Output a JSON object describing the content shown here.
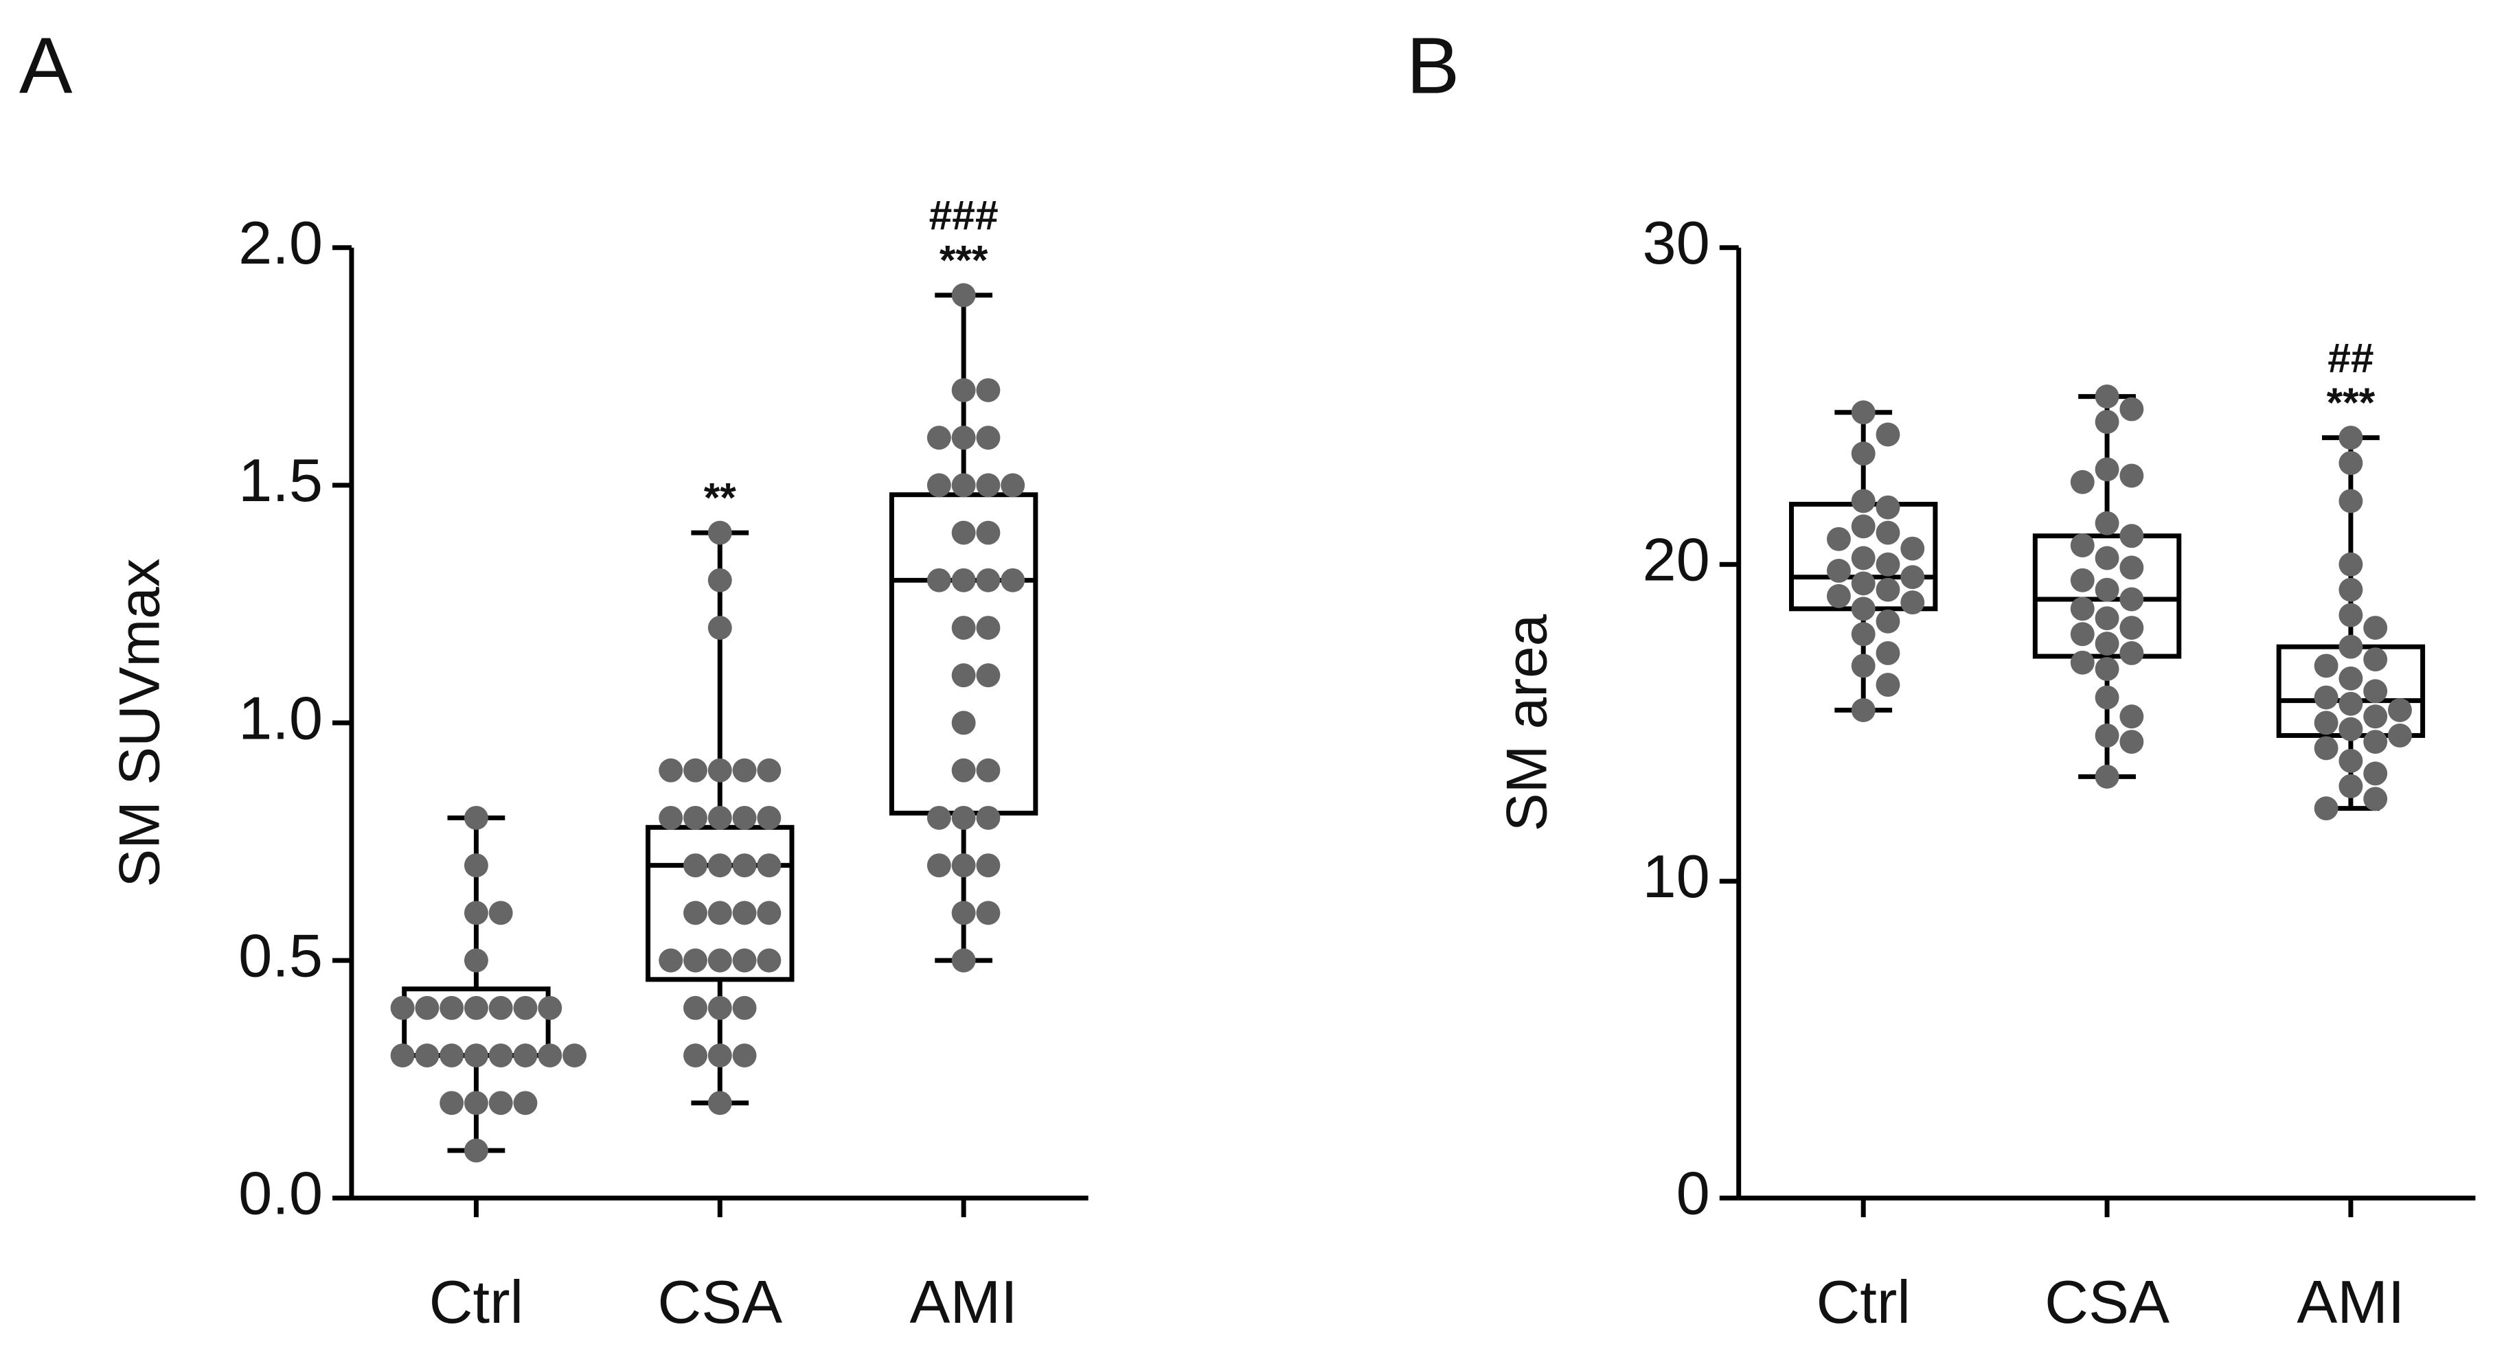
{
  "chart_data": [
    {
      "type": "box",
      "panel": "A",
      "ylabel": "SM SUVmax",
      "categories": [
        "Ctrl",
        "CSA",
        "AMI"
      ],
      "ylim": [
        0,
        2
      ],
      "yticks": [
        {
          "value": 0,
          "label": "0.0"
        },
        0.5,
        {
          "value": 1,
          "label": "1.0"
        },
        1.5,
        {
          "value": 2,
          "label": "2.0"
        }
      ],
      "boxes": [
        {
          "min": 0.1,
          "q1": 0.3,
          "median": 0.3,
          "q3": 0.44,
          "max": 0.8
        },
        {
          "min": 0.2,
          "q1": 0.46,
          "median": 0.7,
          "q3": 0.78,
          "max": 1.4
        },
        {
          "min": 0.5,
          "q1": 0.81,
          "median": 1.3,
          "q3": 1.48,
          "max": 1.9
        }
      ],
      "points": [
        [
          0.8,
          0.7,
          0.6,
          0.6,
          0.5,
          0.4,
          0.4,
          0.4,
          0.4,
          0.4,
          0.4,
          0.4,
          0.3,
          0.3,
          0.3,
          0.3,
          0.3,
          0.3,
          0.3,
          0.3,
          0.2,
          0.2,
          0.2,
          0.2,
          0.1
        ],
        [
          1.4,
          1.3,
          1.2,
          0.9,
          0.9,
          0.9,
          0.9,
          0.9,
          0.8,
          0.8,
          0.8,
          0.8,
          0.8,
          0.7,
          0.7,
          0.7,
          0.7,
          0.6,
          0.6,
          0.6,
          0.6,
          0.5,
          0.5,
          0.5,
          0.5,
          0.5,
          0.4,
          0.4,
          0.4,
          0.3,
          0.3,
          0.3,
          0.2
        ],
        [
          1.9,
          1.7,
          1.7,
          1.6,
          1.6,
          1.6,
          1.5,
          1.5,
          1.5,
          1.5,
          1.4,
          1.4,
          1.3,
          1.3,
          1.3,
          1.3,
          1.2,
          1.2,
          1.1,
          1.1,
          1.0,
          0.9,
          0.9,
          0.8,
          0.8,
          0.8,
          0.7,
          0.7,
          0.7,
          0.6,
          0.6,
          0.5
        ]
      ],
      "stars": [
        null,
        "**",
        "***"
      ],
      "hashes": [
        null,
        null,
        "###"
      ],
      "box_color": "#000000",
      "point_color": "#666666"
    },
    {
      "type": "box",
      "panel": "B",
      "ylabel": "SM area",
      "categories": [
        "Ctrl",
        "CSA",
        "AMI"
      ],
      "ylim": [
        0,
        30
      ],
      "yticks": [
        0,
        10,
        20,
        30
      ],
      "boxes": [
        {
          "min": 15.4,
          "q1": 18.6,
          "median": 19.6,
          "q3": 21.9,
          "max": 24.8
        },
        {
          "min": 13.3,
          "q1": 17.1,
          "median": 18.9,
          "q3": 20.9,
          "max": 25.3
        },
        {
          "min": 12.3,
          "q1": 14.6,
          "median": 15.7,
          "q3": 17.4,
          "max": 24.0
        }
      ],
      "points": [
        [
          24.8,
          24.1,
          23.5,
          22.0,
          21.8,
          21.2,
          21.0,
          20.8,
          20.5,
          20.2,
          20.0,
          19.8,
          19.6,
          19.4,
          19.2,
          19.0,
          18.8,
          18.6,
          18.2,
          17.8,
          17.2,
          16.8,
          16.2,
          15.4
        ],
        [
          25.3,
          24.9,
          24.5,
          23.0,
          22.8,
          22.6,
          21.3,
          20.9,
          20.6,
          20.2,
          19.9,
          19.5,
          19.2,
          18.9,
          18.6,
          18.3,
          18.0,
          17.8,
          17.5,
          17.2,
          16.9,
          16.7,
          15.8,
          15.2,
          14.6,
          14.4,
          13.3
        ],
        [
          24.0,
          23.2,
          22.0,
          20.0,
          19.2,
          18.4,
          18.0,
          17.4,
          17.0,
          16.8,
          16.4,
          16.0,
          15.8,
          15.6,
          15.4,
          15.2,
          15.0,
          14.8,
          14.6,
          14.4,
          14.2,
          13.8,
          13.4,
          13.0,
          12.6,
          12.3
        ]
      ],
      "stars": [
        null,
        null,
        "***"
      ],
      "hashes": [
        null,
        null,
        "##"
      ],
      "box_color": "#000000",
      "point_color": "#666666"
    }
  ]
}
